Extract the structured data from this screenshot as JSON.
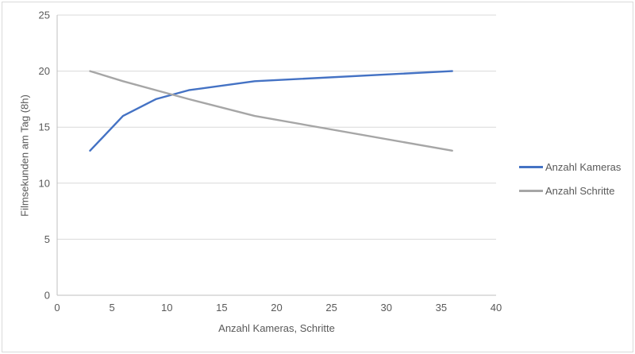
{
  "colors": {
    "series_blue": "#4472C4",
    "series_gray": "#A6A6A6",
    "grid": "#D9D9D9",
    "axis": "#BFBFBF",
    "frame": "#D9D9D9",
    "text": "#595959"
  },
  "chart_data": {
    "type": "line",
    "title": "",
    "xlabel": "Anzahl Kameras, Schritte",
    "ylabel": "Filmsekunden am Tag (8h)",
    "x": [
      3,
      6,
      9,
      12,
      18,
      36
    ],
    "series": [
      {
        "name": "Anzahl Kameras",
        "color": "#4472C4",
        "values": [
          12.9,
          16,
          17.5,
          18.3,
          19.1,
          20
        ]
      },
      {
        "name": "Anzahl Schritte",
        "color": "#A6A6A6",
        "values": [
          20,
          19.1,
          18.3,
          17.5,
          16,
          12.9
        ]
      }
    ],
    "xlim": [
      0,
      40
    ],
    "ylim": [
      0,
      25
    ],
    "xticks": [
      0,
      5,
      10,
      15,
      20,
      25,
      30,
      35,
      40
    ],
    "yticks": [
      0,
      5,
      10,
      15,
      20,
      25
    ],
    "grid": "horizontal",
    "legend_position": "right"
  }
}
